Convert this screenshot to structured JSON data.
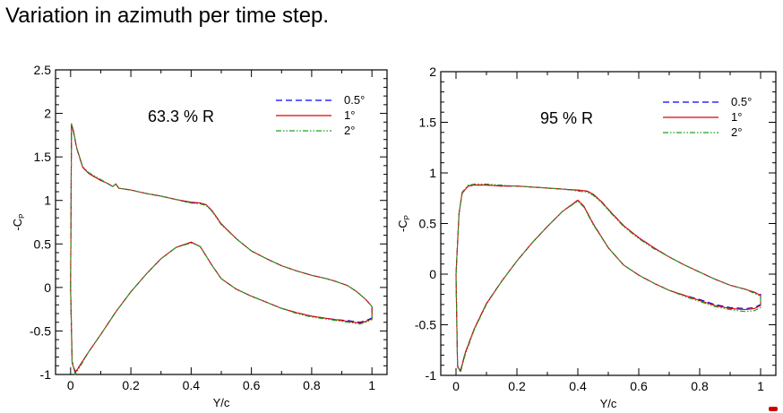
{
  "page": {
    "title": "Variation in azimuth per time step."
  },
  "chart_data": [
    {
      "type": "line",
      "section_label": "63.3 % R",
      "xlabel": "Y/c",
      "ylabel": "-C",
      "ylabel_sub": "P",
      "xlim": [
        -0.05,
        1.05
      ],
      "ylim": [
        -1,
        2.5
      ],
      "xticks": [
        0,
        0.2,
        0.4,
        0.6,
        0.8,
        1
      ],
      "xtick_labels": [
        "0",
        "0.2",
        "0.4",
        "0.6",
        "0.8",
        "1"
      ],
      "yticks": [
        -1,
        -0.5,
        0,
        0.5,
        1,
        1.5,
        2,
        2.5
      ],
      "ytick_labels": [
        "-1",
        "-0.5",
        "0",
        "0.5",
        "1",
        "1.5",
        "2",
        "2.5"
      ],
      "legend_position": "top-right",
      "series": [
        {
          "name": "0.5°",
          "color": "#0000ff",
          "dash": "dashed",
          "x": [
            0.0,
            0.003,
            0.01,
            0.02,
            0.04,
            0.06,
            0.08,
            0.1,
            0.12,
            0.14,
            0.15,
            0.16,
            0.2,
            0.25,
            0.3,
            0.35,
            0.4,
            0.43,
            0.45,
            0.47,
            0.5,
            0.55,
            0.6,
            0.65,
            0.7,
            0.75,
            0.8,
            0.85,
            0.88,
            0.92,
            0.95,
            0.98,
            1.0,
            1.0,
            0.98,
            0.96,
            0.92,
            0.88,
            0.84,
            0.8,
            0.75,
            0.7,
            0.65,
            0.6,
            0.55,
            0.5,
            0.47,
            0.43,
            0.4,
            0.35,
            0.3,
            0.25,
            0.2,
            0.15,
            0.1,
            0.06,
            0.03,
            0.015,
            0.005,
            0.0
          ],
          "y": [
            0.0,
            1.87,
            1.78,
            1.6,
            1.38,
            1.31,
            1.27,
            1.23,
            1.2,
            1.16,
            1.19,
            1.14,
            1.12,
            1.08,
            1.05,
            1.01,
            0.97,
            0.97,
            0.95,
            0.88,
            0.73,
            0.56,
            0.42,
            0.33,
            0.25,
            0.19,
            0.14,
            0.1,
            0.07,
            0.02,
            -0.05,
            -0.14,
            -0.22,
            -0.35,
            -0.38,
            -0.4,
            -0.38,
            -0.37,
            -0.35,
            -0.33,
            -0.29,
            -0.24,
            -0.17,
            -0.1,
            -0.02,
            0.1,
            0.25,
            0.47,
            0.52,
            0.46,
            0.33,
            0.15,
            -0.05,
            -0.28,
            -0.54,
            -0.74,
            -0.9,
            -0.97,
            -0.85,
            0.0
          ]
        },
        {
          "name": "1°",
          "color": "#e00000",
          "dash": "solid",
          "x": [
            0.0,
            0.003,
            0.01,
            0.02,
            0.04,
            0.06,
            0.08,
            0.1,
            0.12,
            0.14,
            0.15,
            0.16,
            0.2,
            0.25,
            0.3,
            0.35,
            0.4,
            0.43,
            0.45,
            0.47,
            0.5,
            0.55,
            0.6,
            0.65,
            0.7,
            0.75,
            0.8,
            0.85,
            0.88,
            0.92,
            0.95,
            0.98,
            1.0,
            1.0,
            0.98,
            0.96,
            0.92,
            0.88,
            0.84,
            0.8,
            0.75,
            0.7,
            0.65,
            0.6,
            0.55,
            0.5,
            0.47,
            0.43,
            0.4,
            0.35,
            0.3,
            0.25,
            0.2,
            0.15,
            0.1,
            0.06,
            0.03,
            0.015,
            0.005,
            0.0
          ],
          "y": [
            0.0,
            1.88,
            1.79,
            1.61,
            1.38,
            1.31,
            1.27,
            1.23,
            1.2,
            1.16,
            1.19,
            1.14,
            1.12,
            1.08,
            1.05,
            1.01,
            0.98,
            0.97,
            0.95,
            0.88,
            0.73,
            0.56,
            0.42,
            0.33,
            0.25,
            0.19,
            0.14,
            0.1,
            0.07,
            0.02,
            -0.05,
            -0.14,
            -0.22,
            -0.36,
            -0.39,
            -0.41,
            -0.39,
            -0.37,
            -0.35,
            -0.33,
            -0.29,
            -0.24,
            -0.17,
            -0.1,
            -0.02,
            0.1,
            0.25,
            0.47,
            0.52,
            0.46,
            0.33,
            0.15,
            -0.05,
            -0.28,
            -0.54,
            -0.74,
            -0.9,
            -0.98,
            -0.86,
            0.0
          ]
        },
        {
          "name": "2°",
          "color": "#1fa01f",
          "dash": "dashdotdot",
          "x": [
            0.0,
            0.003,
            0.01,
            0.02,
            0.04,
            0.06,
            0.08,
            0.1,
            0.12,
            0.14,
            0.15,
            0.16,
            0.2,
            0.25,
            0.3,
            0.35,
            0.4,
            0.43,
            0.45,
            0.47,
            0.5,
            0.55,
            0.6,
            0.65,
            0.7,
            0.75,
            0.8,
            0.85,
            0.88,
            0.92,
            0.95,
            0.98,
            1.0,
            1.0,
            0.98,
            0.96,
            0.92,
            0.88,
            0.84,
            0.8,
            0.75,
            0.7,
            0.65,
            0.6,
            0.55,
            0.5,
            0.47,
            0.43,
            0.4,
            0.35,
            0.3,
            0.25,
            0.2,
            0.15,
            0.1,
            0.06,
            0.03,
            0.015,
            0.005,
            0.0
          ],
          "y": [
            0.0,
            1.88,
            1.79,
            1.61,
            1.39,
            1.32,
            1.28,
            1.24,
            1.2,
            1.16,
            1.19,
            1.14,
            1.12,
            1.08,
            1.05,
            1.01,
            0.97,
            0.96,
            0.94,
            0.87,
            0.72,
            0.56,
            0.42,
            0.33,
            0.25,
            0.19,
            0.14,
            0.1,
            0.07,
            0.02,
            -0.05,
            -0.14,
            -0.22,
            -0.37,
            -0.4,
            -0.42,
            -0.4,
            -0.38,
            -0.36,
            -0.34,
            -0.3,
            -0.24,
            -0.17,
            -0.1,
            -0.02,
            0.1,
            0.25,
            0.47,
            0.51,
            0.46,
            0.33,
            0.15,
            -0.05,
            -0.28,
            -0.54,
            -0.74,
            -0.92,
            -1.0,
            -0.87,
            0.0
          ]
        }
      ]
    },
    {
      "type": "line",
      "section_label": "95 % R",
      "xlabel": "Y/c",
      "ylabel": "-C",
      "ylabel_sub": "P",
      "xlim": [
        -0.05,
        1.05
      ],
      "ylim": [
        -1,
        2
      ],
      "xticks": [
        0,
        0.2,
        0.4,
        0.6,
        0.8,
        1
      ],
      "xtick_labels": [
        "0",
        "0.2",
        "0.4",
        "0.6",
        "0.8",
        "1"
      ],
      "yticks": [
        -1,
        -0.5,
        0,
        0.5,
        1,
        1.5,
        2
      ],
      "ytick_labels": [
        "-1",
        "-0.5",
        "0",
        "0.5",
        "1",
        "1.5",
        "2"
      ],
      "legend_position": "top-right",
      "series": [
        {
          "name": "0.5°",
          "color": "#0000ff",
          "dash": "dashed",
          "x": [
            0.0,
            0.005,
            0.01,
            0.02,
            0.04,
            0.06,
            0.1,
            0.15,
            0.2,
            0.25,
            0.3,
            0.35,
            0.4,
            0.43,
            0.45,
            0.48,
            0.5,
            0.55,
            0.6,
            0.65,
            0.7,
            0.75,
            0.8,
            0.85,
            0.9,
            0.95,
            0.98,
            1.0,
            1.0,
            0.98,
            0.95,
            0.9,
            0.85,
            0.8,
            0.75,
            0.7,
            0.65,
            0.6,
            0.55,
            0.5,
            0.45,
            0.42,
            0.4,
            0.35,
            0.3,
            0.25,
            0.2,
            0.15,
            0.1,
            0.06,
            0.03,
            0.015,
            0.005,
            0.0
          ],
          "y": [
            0.0,
            0.3,
            0.6,
            0.8,
            0.87,
            0.88,
            0.88,
            0.87,
            0.87,
            0.86,
            0.85,
            0.84,
            0.83,
            0.82,
            0.79,
            0.71,
            0.64,
            0.48,
            0.36,
            0.26,
            0.17,
            0.09,
            0.02,
            -0.05,
            -0.11,
            -0.15,
            -0.18,
            -0.2,
            -0.3,
            -0.33,
            -0.34,
            -0.33,
            -0.3,
            -0.25,
            -0.21,
            -0.16,
            -0.09,
            -0.01,
            0.09,
            0.26,
            0.5,
            0.67,
            0.73,
            0.62,
            0.47,
            0.31,
            0.13,
            -0.07,
            -0.29,
            -0.54,
            -0.78,
            -0.95,
            -0.9,
            0.0
          ]
        },
        {
          "name": "1°",
          "color": "#e00000",
          "dash": "solid",
          "x": [
            0.0,
            0.005,
            0.01,
            0.02,
            0.04,
            0.06,
            0.1,
            0.15,
            0.2,
            0.25,
            0.3,
            0.35,
            0.4,
            0.43,
            0.45,
            0.48,
            0.5,
            0.55,
            0.6,
            0.65,
            0.7,
            0.75,
            0.8,
            0.85,
            0.9,
            0.95,
            0.98,
            1.0,
            1.0,
            0.98,
            0.95,
            0.9,
            0.85,
            0.8,
            0.75,
            0.7,
            0.65,
            0.6,
            0.55,
            0.5,
            0.45,
            0.42,
            0.4,
            0.35,
            0.3,
            0.25,
            0.2,
            0.15,
            0.1,
            0.06,
            0.03,
            0.015,
            0.005,
            0.0
          ],
          "y": [
            0.0,
            0.3,
            0.6,
            0.8,
            0.87,
            0.88,
            0.88,
            0.87,
            0.87,
            0.86,
            0.85,
            0.84,
            0.83,
            0.82,
            0.79,
            0.71,
            0.64,
            0.48,
            0.36,
            0.26,
            0.17,
            0.09,
            0.02,
            -0.05,
            -0.11,
            -0.15,
            -0.18,
            -0.21,
            -0.31,
            -0.34,
            -0.35,
            -0.34,
            -0.31,
            -0.26,
            -0.21,
            -0.16,
            -0.09,
            -0.01,
            0.09,
            0.26,
            0.5,
            0.67,
            0.73,
            0.62,
            0.47,
            0.31,
            0.13,
            -0.07,
            -0.29,
            -0.54,
            -0.78,
            -0.96,
            -0.91,
            0.0
          ]
        },
        {
          "name": "2°",
          "color": "#1fa01f",
          "dash": "dashdotdot",
          "x": [
            0.0,
            0.005,
            0.01,
            0.02,
            0.04,
            0.06,
            0.1,
            0.15,
            0.2,
            0.25,
            0.3,
            0.35,
            0.4,
            0.43,
            0.45,
            0.48,
            0.5,
            0.55,
            0.6,
            0.65,
            0.7,
            0.75,
            0.8,
            0.85,
            0.9,
            0.95,
            0.98,
            1.0,
            1.0,
            0.98,
            0.95,
            0.9,
            0.85,
            0.8,
            0.75,
            0.7,
            0.65,
            0.6,
            0.55,
            0.5,
            0.45,
            0.42,
            0.4,
            0.35,
            0.3,
            0.25,
            0.2,
            0.15,
            0.1,
            0.06,
            0.03,
            0.015,
            0.005,
            0.0
          ],
          "y": [
            0.0,
            0.3,
            0.6,
            0.81,
            0.88,
            0.89,
            0.89,
            0.88,
            0.87,
            0.86,
            0.85,
            0.84,
            0.82,
            0.81,
            0.78,
            0.7,
            0.63,
            0.47,
            0.35,
            0.25,
            0.17,
            0.09,
            0.02,
            -0.05,
            -0.11,
            -0.15,
            -0.19,
            -0.22,
            -0.33,
            -0.36,
            -0.37,
            -0.35,
            -0.32,
            -0.27,
            -0.22,
            -0.16,
            -0.09,
            -0.01,
            0.09,
            0.26,
            0.49,
            0.66,
            0.72,
            0.62,
            0.47,
            0.31,
            0.13,
            -0.07,
            -0.3,
            -0.55,
            -0.8,
            -0.97,
            -0.92,
            0.0
          ]
        }
      ]
    }
  ]
}
